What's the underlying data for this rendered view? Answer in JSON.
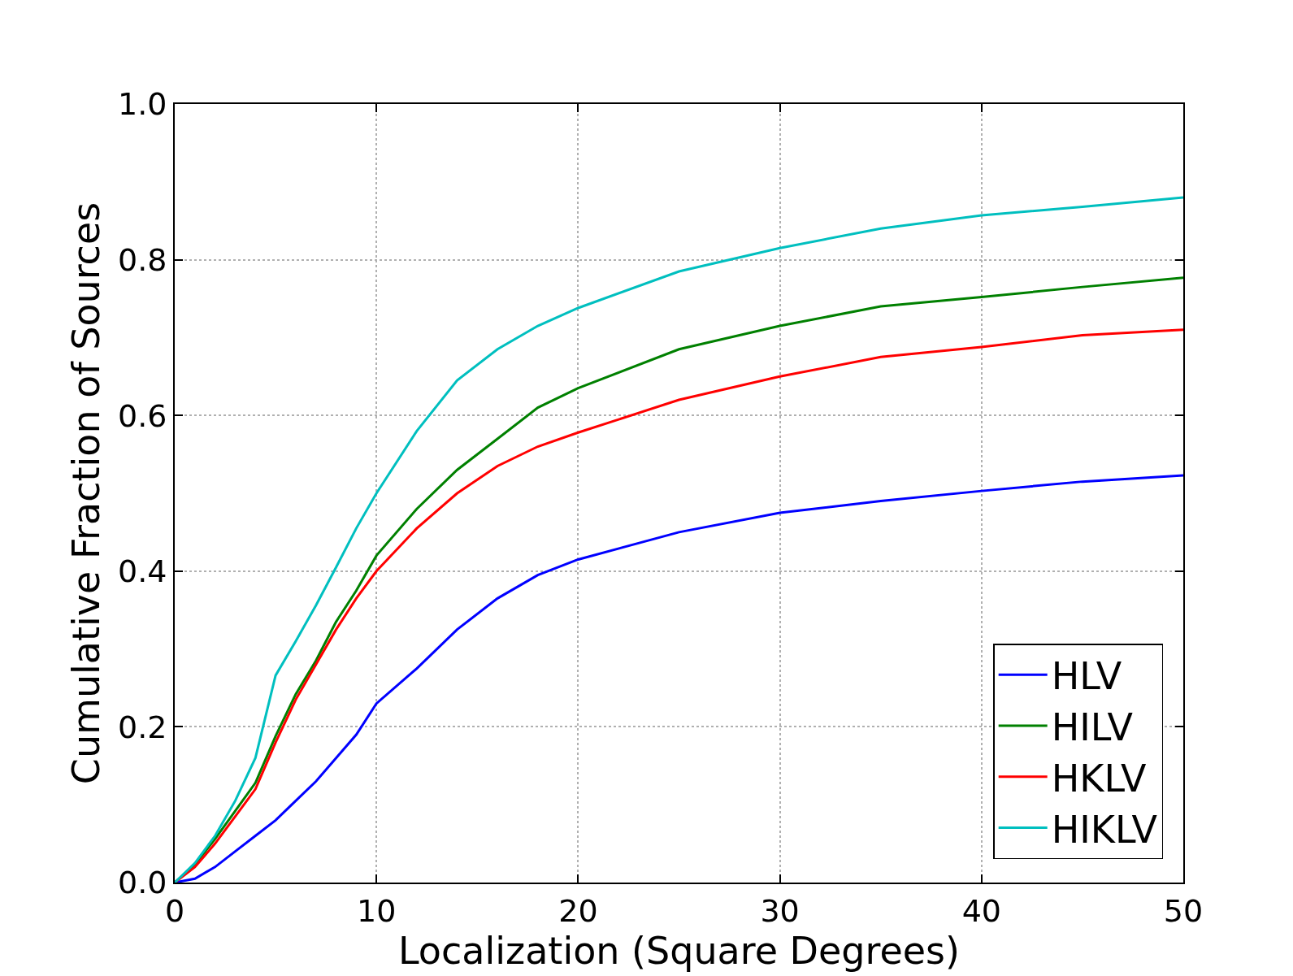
{
  "chart_data": {
    "type": "line",
    "xlabel": "Localization (Square Degrees)",
    "ylabel": "Cumulative Fraction of Sources",
    "xlim": [
      0,
      50
    ],
    "ylim": [
      0,
      1.0
    ],
    "xticks": [
      0,
      10,
      20,
      30,
      40,
      50
    ],
    "yticks": [
      {
        "value": 0,
        "label": "0.0"
      },
      0.2,
      0.4,
      0.6,
      0.8,
      {
        "value": 1,
        "label": "1.0"
      }
    ],
    "grid": true,
    "legend": "bottom right",
    "marker": "none",
    "line_style": "solid",
    "x": [
      0,
      1,
      2,
      3,
      4,
      5,
      6,
      7,
      8,
      9,
      10,
      12,
      14,
      16,
      18,
      20,
      25,
      30,
      35,
      40,
      45,
      50
    ],
    "series": [
      {
        "name": "HLV",
        "color": "#0000ff",
        "values": [
          0,
          0.005,
          0.02,
          0.04,
          0.06,
          0.08,
          0.105,
          0.13,
          0.16,
          0.19,
          0.23,
          0.275,
          0.325,
          0.365,
          0.395,
          0.415,
          0.45,
          0.475,
          0.49,
          0.503,
          0.515,
          0.523
        ]
      },
      {
        "name": "HILV",
        "color": "#008000",
        "values": [
          0,
          0.023,
          0.056,
          0.092,
          0.128,
          0.188,
          0.242,
          0.285,
          0.335,
          0.375,
          0.42,
          0.48,
          0.53,
          0.57,
          0.61,
          0.635,
          0.685,
          0.715,
          0.74,
          0.752,
          0.765,
          0.777
        ]
      },
      {
        "name": "HKLV",
        "color": "#ff0000",
        "values": [
          0,
          0.02,
          0.05,
          0.085,
          0.12,
          0.18,
          0.235,
          0.28,
          0.325,
          0.365,
          0.4,
          0.455,
          0.5,
          0.535,
          0.56,
          0.578,
          0.62,
          0.65,
          0.675,
          0.688,
          0.703,
          0.71
        ]
      },
      {
        "name": "HIKLV",
        "color": "#00bfbf",
        "values": [
          0,
          0.025,
          0.06,
          0.105,
          0.16,
          0.266,
          0.31,
          0.356,
          0.405,
          0.455,
          0.5,
          0.58,
          0.645,
          0.685,
          0.715,
          0.738,
          0.785,
          0.815,
          0.84,
          0.857,
          0.868,
          0.88
        ]
      }
    ]
  }
}
